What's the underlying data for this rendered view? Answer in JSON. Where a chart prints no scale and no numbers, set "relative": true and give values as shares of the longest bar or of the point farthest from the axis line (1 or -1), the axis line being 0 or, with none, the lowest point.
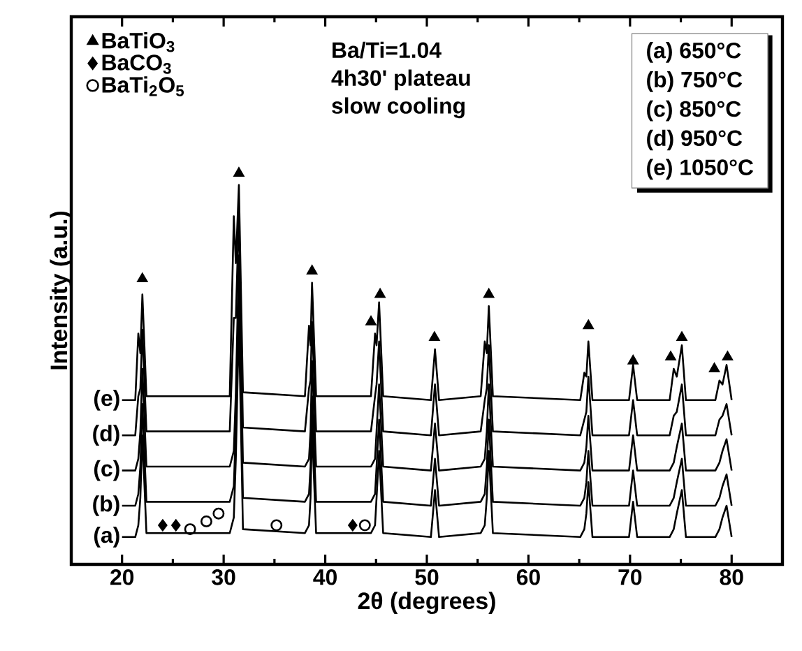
{
  "chart_data": {
    "type": "line",
    "relative": true,
    "xlabel": "2θ (degrees)",
    "ylabel": "Intensity (a.u.)",
    "xlim": [
      15,
      85
    ],
    "xticks": [
      20,
      30,
      40,
      50,
      60,
      70,
      80
    ],
    "tick_labels": "x",
    "grid": false,
    "legend": "top left",
    "line_style": "solid",
    "marker": "none",
    "x": [
      20,
      21.3,
      21.6,
      21.8,
      22.0,
      22.4,
      30.6,
      31.0,
      31.2,
      31.5,
      31.9,
      38.0,
      38.4,
      38.55,
      38.7,
      39.1,
      44.5,
      44.9,
      45.05,
      45.3,
      45.7,
      50.4,
      50.8,
      51.2,
      55.3,
      55.7,
      55.9,
      56.1,
      56.5,
      65.1,
      65.5,
      65.7,
      65.9,
      66.3,
      69.9,
      70.3,
      70.7,
      73.9,
      74.3,
      74.6,
      75.1,
      75.5,
      78.4,
      78.8,
      79.1,
      79.5,
      80
    ],
    "series": [
      {
        "name": "(a)",
        "color": "#000000",
        "values": [
          0.07,
          0.07,
          0.1,
          0.17,
          0.33,
          0.08,
          0.08,
          0.12,
          0.27,
          0.62,
          0.09,
          0.08,
          0.1,
          0.17,
          0.35,
          0.08,
          0.08,
          0.1,
          0.17,
          0.29,
          0.08,
          0.07,
          0.19,
          0.07,
          0.08,
          0.1,
          0.17,
          0.29,
          0.08,
          0.07,
          0.09,
          0.13,
          0.21,
          0.07,
          0.07,
          0.16,
          0.07,
          0.07,
          0.09,
          0.13,
          0.19,
          0.07,
          0.07,
          0.09,
          0.12,
          0.15,
          0.07
        ]
      },
      {
        "name": "(b)",
        "color": "#000000",
        "values": [
          0.15,
          0.15,
          0.18,
          0.25,
          0.41,
          0.16,
          0.16,
          0.2,
          0.35,
          0.7,
          0.17,
          0.16,
          0.18,
          0.25,
          0.43,
          0.16,
          0.16,
          0.18,
          0.25,
          0.37,
          0.16,
          0.15,
          0.27,
          0.15,
          0.16,
          0.18,
          0.25,
          0.37,
          0.16,
          0.15,
          0.17,
          0.21,
          0.29,
          0.15,
          0.15,
          0.24,
          0.15,
          0.15,
          0.17,
          0.21,
          0.27,
          0.15,
          0.15,
          0.17,
          0.2,
          0.23,
          0.15
        ]
      },
      {
        "name": "(c)",
        "color": "#000000",
        "values": [
          0.24,
          0.24,
          0.27,
          0.34,
          0.5,
          0.25,
          0.25,
          0.29,
          0.44,
          0.79,
          0.26,
          0.25,
          0.27,
          0.34,
          0.52,
          0.25,
          0.25,
          0.27,
          0.34,
          0.46,
          0.25,
          0.24,
          0.36,
          0.24,
          0.25,
          0.27,
          0.34,
          0.46,
          0.25,
          0.24,
          0.26,
          0.3,
          0.38,
          0.24,
          0.24,
          0.33,
          0.24,
          0.24,
          0.26,
          0.3,
          0.36,
          0.24,
          0.24,
          0.26,
          0.29,
          0.32,
          0.24
        ]
      },
      {
        "name": "(d)",
        "color": "#000000",
        "values": [
          0.33,
          0.33,
          0.43,
          0.45,
          0.6,
          0.34,
          0.34,
          0.63,
          0.63,
          0.9,
          0.35,
          0.34,
          0.45,
          0.47,
          0.62,
          0.34,
          0.34,
          0.43,
          0.46,
          0.57,
          0.34,
          0.33,
          0.46,
          0.33,
          0.34,
          0.42,
          0.45,
          0.56,
          0.34,
          0.33,
          0.37,
          0.39,
          0.48,
          0.33,
          0.33,
          0.42,
          0.33,
          0.33,
          0.38,
          0.39,
          0.46,
          0.33,
          0.33,
          0.37,
          0.38,
          0.41,
          0.33
        ]
      },
      {
        "name": "(e)",
        "color": "#000000",
        "values": [
          0.42,
          0.42,
          0.59,
          0.54,
          0.69,
          0.43,
          0.43,
          0.89,
          0.77,
          0.97,
          0.44,
          0.43,
          0.61,
          0.56,
          0.72,
          0.43,
          0.43,
          0.59,
          0.56,
          0.67,
          0.43,
          0.42,
          0.55,
          0.42,
          0.43,
          0.57,
          0.54,
          0.66,
          0.43,
          0.42,
          0.49,
          0.48,
          0.57,
          0.42,
          0.42,
          0.51,
          0.42,
          0.42,
          0.5,
          0.48,
          0.56,
          0.42,
          0.42,
          0.47,
          0.46,
          0.51,
          0.42
        ]
      },
      {
        "name": "BaTiO$_{3}$",
        "type": "scatter",
        "marker": "triangle",
        "color": "#000000",
        "x": [
          22.0,
          31.5,
          38.7,
          44.5,
          45.4,
          50.75,
          56.1,
          65.9,
          70.3,
          74.0,
          75.1,
          78.3,
          79.6
        ],
        "values": [
          0.73,
          1.0,
          0.75,
          0.62,
          0.69,
          0.58,
          0.69,
          0.61,
          0.52,
          0.53,
          0.58,
          0.5,
          0.53
        ]
      },
      {
        "name": "BaCO$_{3}$",
        "type": "scatter",
        "marker": "diamond",
        "color": "#000000",
        "x": [
          24.0,
          25.3,
          42.7
        ],
        "values": [
          0.1,
          0.1,
          0.1
        ]
      },
      {
        "name": "BaTi$_{2}$O$_{5}$",
        "type": "scatter",
        "marker": "circle",
        "color": "#000000",
        "x": [
          26.7,
          28.3,
          29.5,
          35.2,
          43.9
        ],
        "values": [
          0.09,
          0.11,
          0.13,
          0.1,
          0.1
        ]
      }
    ],
    "annotations": [
      "Ba/Ti=1.04",
      "4h30' plateau",
      "slow cooling",
      "(a) 650°C",
      "(b) 750°C",
      "(c) 850°C",
      "(d) 950°C",
      "(e) 1050°C"
    ]
  }
}
